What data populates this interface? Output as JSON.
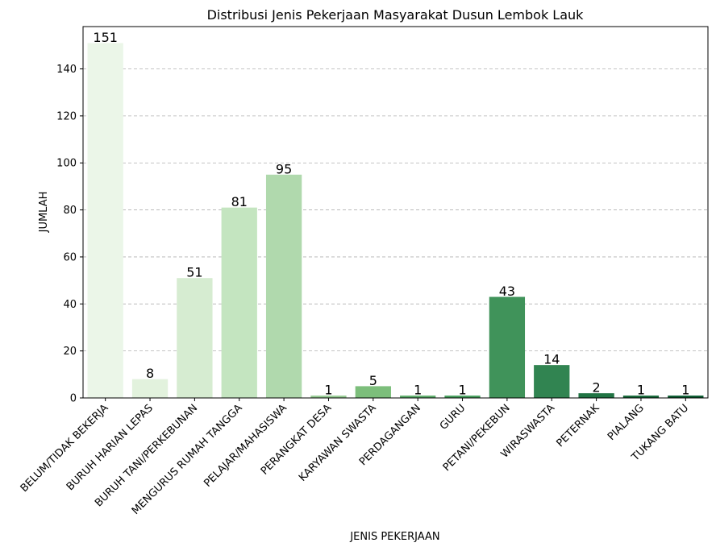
{
  "chart_data": {
    "type": "bar",
    "title": "Distribusi Jenis Pekerjaan Masyarakat Dusun Lembok Lauk",
    "xlabel": "JENIS PEKERJAAN",
    "ylabel": "JUMLAH",
    "categories": [
      "BELUM/TIDAK BEKERJA",
      "BURUH HARIAN LEPAS",
      "BURUH TANI/PERKEBUNAN",
      "MENGURUS RUMAH TANGGA",
      "PELAJAR/MAHASISWA",
      "PERANGKAT DESA",
      "KARYAWAN SWASTA",
      "PERDAGANGAN",
      "GURU",
      "PETANI/PEKEBUN",
      "WIRASWASTA",
      "PETERNAK",
      "PIALANG",
      "TUKANG BATU"
    ],
    "values": [
      151,
      8,
      51,
      81,
      95,
      1,
      5,
      1,
      1,
      43,
      14,
      2,
      1,
      1
    ],
    "value_labels": [
      "151",
      "8",
      "51",
      "81",
      "95",
      "1",
      "5",
      "1",
      "1",
      "43",
      "14",
      "2",
      "1",
      "1"
    ],
    "colors": [
      "#ebf6e8",
      "#e2f2dd",
      "#d6ecd1",
      "#c4e5c0",
      "#b0d9ad",
      "#97cc93",
      "#7cbe7b",
      "#5dad6b",
      "#48a05e",
      "#40935a",
      "#318451",
      "#217444",
      "#156839",
      "#0b5b31"
    ],
    "ylim": [
      0,
      158
    ],
    "yticks": [
      0,
      20,
      40,
      60,
      80,
      100,
      120,
      140
    ],
    "ytick_labels": [
      "0",
      "20",
      "40",
      "60",
      "80",
      "100",
      "120",
      "140"
    ],
    "grid": "horizontal dashed",
    "legend": "none"
  }
}
